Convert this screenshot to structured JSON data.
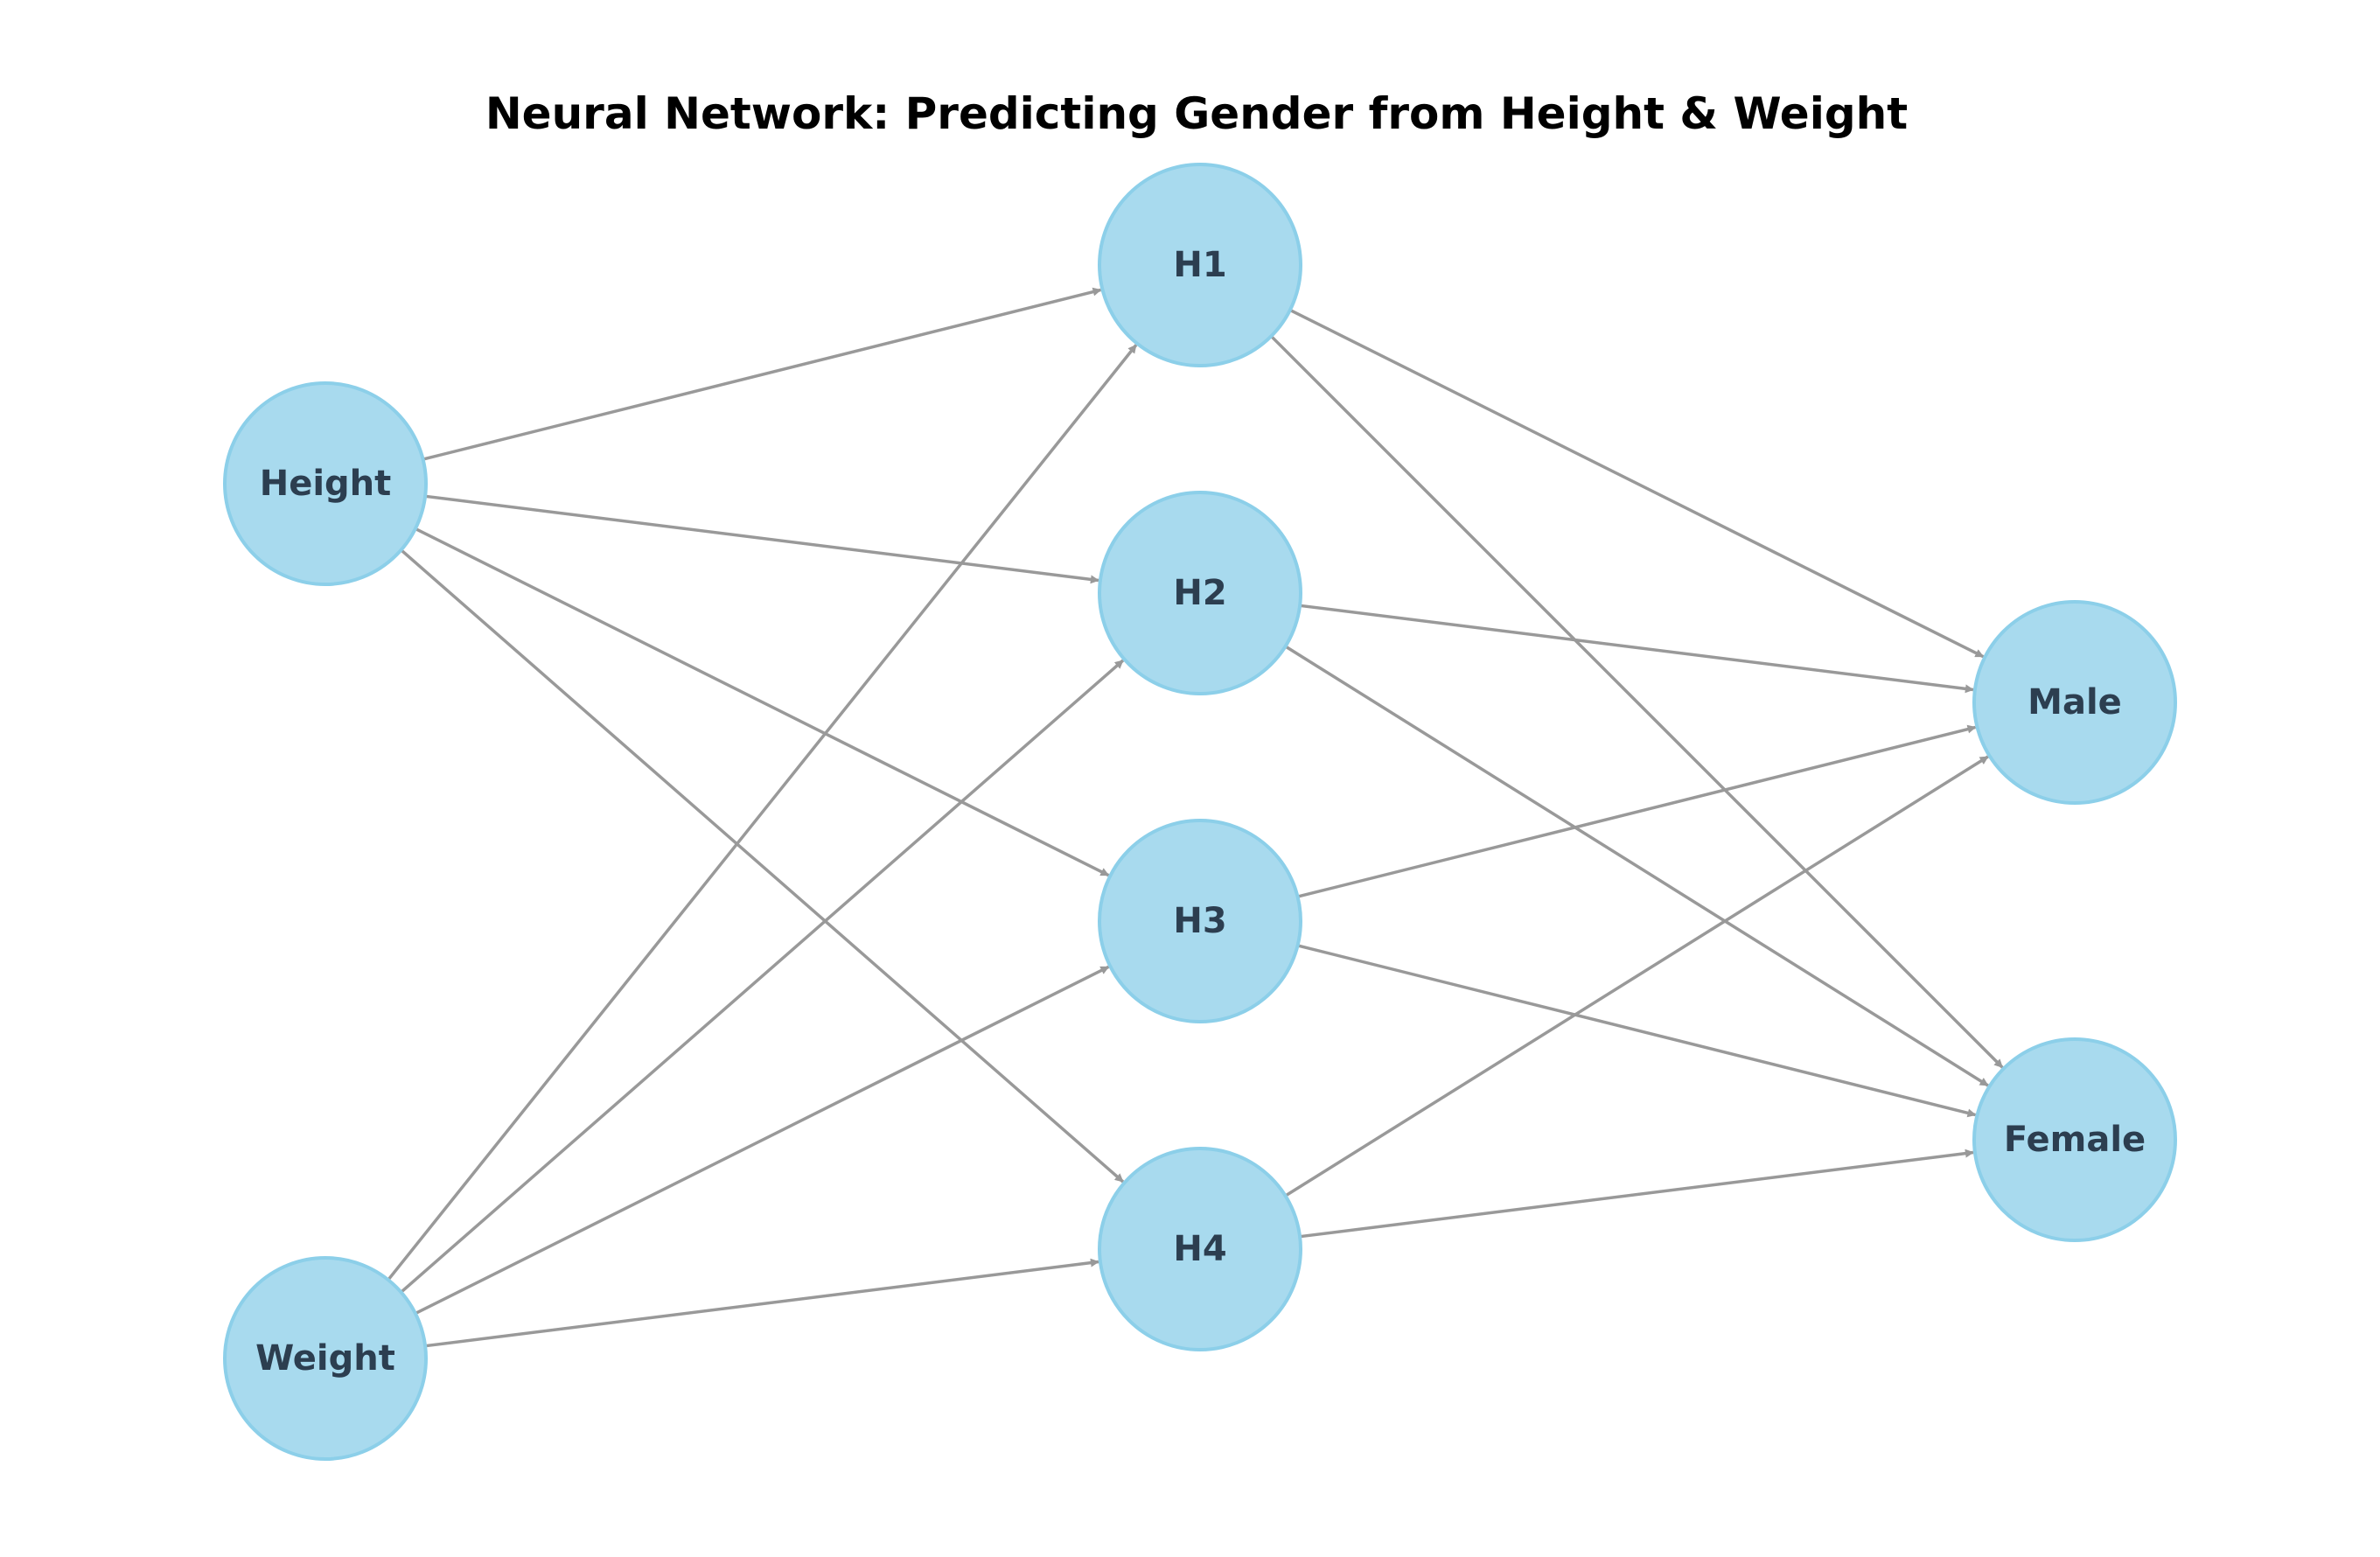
{
  "title": "Neural Network: Predicting Gender from Height & Weight",
  "colors": {
    "node_fill": "#a8daee",
    "node_stroke": "#8ccfe9",
    "label": "#2c3e50",
    "edge": "#999999",
    "title": "#000000"
  },
  "layers": [
    {
      "nodes": [
        {
          "id": "height",
          "label": "Height"
        },
        {
          "id": "weight",
          "label": "Weight"
        }
      ]
    },
    {
      "nodes": [
        {
          "id": "h1",
          "label": "H1"
        },
        {
          "id": "h2",
          "label": "H2"
        },
        {
          "id": "h3",
          "label": "H3"
        },
        {
          "id": "h4",
          "label": "H4"
        }
      ]
    },
    {
      "nodes": [
        {
          "id": "male",
          "label": "Male"
        },
        {
          "id": "female",
          "label": "Female"
        }
      ]
    }
  ],
  "edges": [
    [
      "height",
      "h1"
    ],
    [
      "height",
      "h2"
    ],
    [
      "height",
      "h3"
    ],
    [
      "height",
      "h4"
    ],
    [
      "weight",
      "h1"
    ],
    [
      "weight",
      "h2"
    ],
    [
      "weight",
      "h3"
    ],
    [
      "weight",
      "h4"
    ],
    [
      "h1",
      "male"
    ],
    [
      "h1",
      "female"
    ],
    [
      "h2",
      "male"
    ],
    [
      "h2",
      "female"
    ],
    [
      "h3",
      "male"
    ],
    [
      "h3",
      "female"
    ],
    [
      "h4",
      "male"
    ],
    [
      "h4",
      "female"
    ]
  ]
}
